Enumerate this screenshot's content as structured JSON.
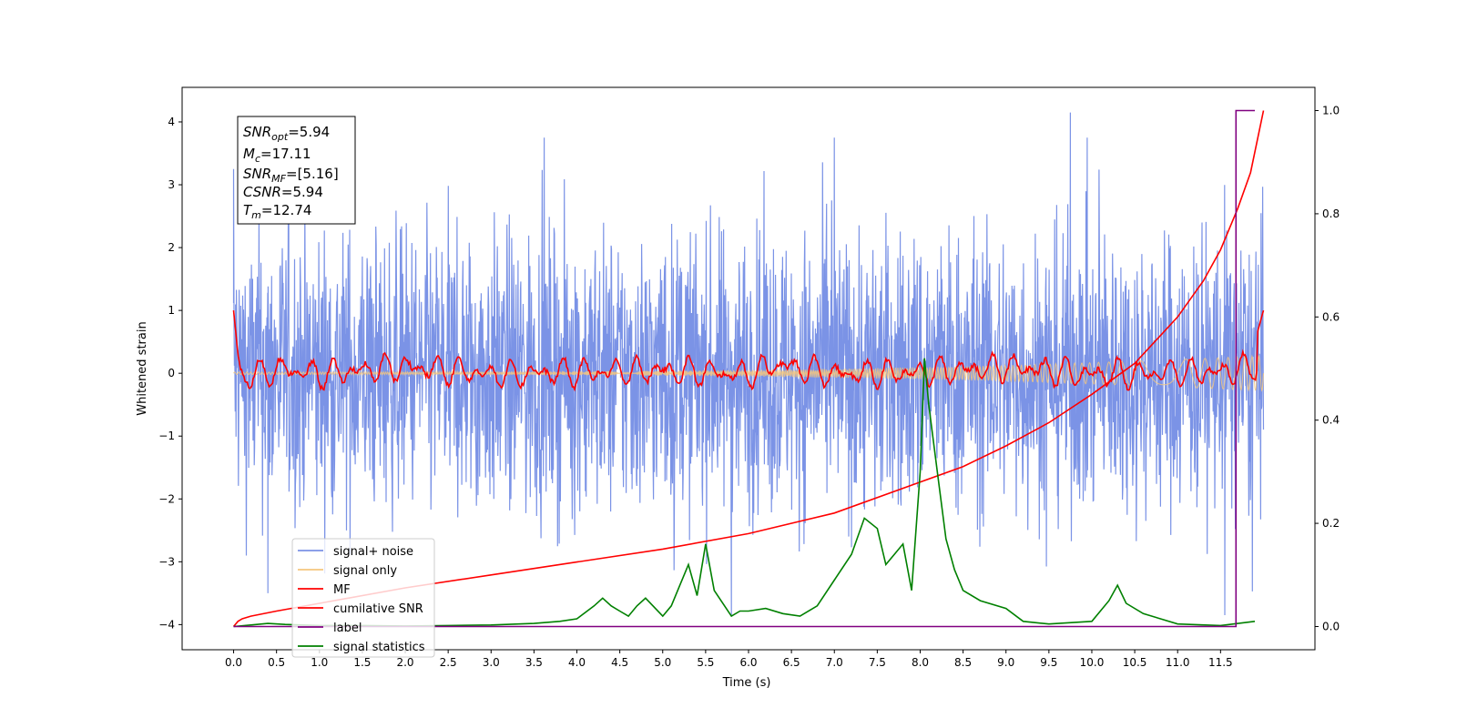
{
  "chart_data": {
    "type": "line",
    "xlabel": "Time (s)",
    "ylabel": "Whitened strain",
    "xlim": [
      -0.6,
      12.6
    ],
    "ylim": [
      -4.4,
      4.55
    ],
    "y2lim": [
      -0.045,
      1.045
    ],
    "x_ticks": [
      "0.0",
      "0.5",
      "1.0",
      "1.5",
      "2.0",
      "2.5",
      "3.0",
      "3.5",
      "4.0",
      "4.5",
      "5.0",
      "5.5",
      "6.0",
      "6.5",
      "7.0",
      "7.5",
      "8.0",
      "8.5",
      "9.0",
      "9.5",
      "10.0",
      "10.5",
      "11.0",
      "11.5"
    ],
    "y_ticks": [
      "−4",
      "−3",
      "−2",
      "−1",
      "0",
      "1",
      "2",
      "3",
      "4"
    ],
    "y2_ticks": [
      "0.0",
      "0.2",
      "0.4",
      "0.6",
      "0.8",
      "1.0"
    ],
    "grid": false,
    "legend_position": "lower-left",
    "annotation": {
      "lines": [
        {
          "sym": "SNR",
          "sub": "opt",
          "val": "=5.94"
        },
        {
          "sym": "M",
          "sub": "c",
          "val": "=17.11"
        },
        {
          "sym": "SNR",
          "sub": "MF",
          "val": "=[5.16]"
        },
        {
          "sym": "CSNR",
          "sub": "",
          "val": "=5.94"
        },
        {
          "sym": "T",
          "sub": "m",
          "val": "=12.74"
        }
      ]
    },
    "series": [
      {
        "name": "signal+ noise",
        "color": "#7b93e6",
        "axis": "left",
        "x_range": [
          0.0,
          12.0
        ],
        "envelope_upper": [
          2.2,
          4.15
        ],
        "envelope_lower": [
          -3.85,
          -2.0
        ],
        "notable_peaks": [
          {
            "x": 9.75,
            "y": 4.15
          },
          {
            "x": 7.0,
            "y": 3.75
          },
          {
            "x": 0.0,
            "y": 3.25
          }
        ],
        "notable_dips": [
          {
            "x": 5.8,
            "y": -3.85
          },
          {
            "x": 11.55,
            "y": -3.85
          },
          {
            "x": 0.4,
            "y": -3.5
          }
        ]
      },
      {
        "name": "signal only",
        "color": "#f5c77e",
        "axis": "left",
        "x_range": [
          0.0,
          12.0
        ],
        "amplitude_start": 0.02,
        "amplitude_end": 0.28
      },
      {
        "name": "MF",
        "color": "#ff0000",
        "axis": "left",
        "x_range": [
          0.0,
          12.0
        ],
        "x": [
          0.0,
          0.05,
          0.1,
          0.3,
          0.5,
          1.0,
          2.0,
          3.0,
          4.0,
          5.0,
          6.0,
          6.3,
          7.0,
          8.0,
          9.0,
          10.0,
          11.0,
          11.5,
          11.9,
          12.0
        ],
        "y": [
          1.0,
          0.3,
          -0.05,
          0.1,
          0.4,
          0.1,
          0.5,
          0.1,
          0.2,
          0.3,
          0.1,
          0.6,
          0.1,
          0.2,
          0.5,
          0.1,
          0.2,
          0.2,
          0.5,
          1.0
        ]
      },
      {
        "name": "cumilative SNR",
        "color": "#ff0000",
        "axis": "right",
        "x": [
          0.0,
          0.05,
          0.1,
          0.2,
          0.5,
          1.0,
          2.0,
          3.0,
          4.0,
          5.0,
          6.0,
          7.0,
          8.0,
          8.5,
          9.0,
          9.5,
          10.0,
          10.5,
          11.0,
          11.3,
          11.5,
          11.7,
          11.85,
          12.0
        ],
        "y": [
          0.0,
          0.01,
          0.015,
          0.02,
          0.03,
          0.045,
          0.075,
          0.1,
          0.125,
          0.15,
          0.18,
          0.22,
          0.28,
          0.31,
          0.35,
          0.395,
          0.45,
          0.51,
          0.6,
          0.67,
          0.73,
          0.81,
          0.88,
          1.0
        ]
      },
      {
        "name": "label",
        "color": "#800080",
        "axis": "right",
        "x": [
          0.0,
          11.68,
          11.68,
          11.9
        ],
        "y": [
          0.0,
          0.0,
          1.0,
          1.0
        ]
      },
      {
        "name": "signal statistics",
        "color": "#008000",
        "axis": "right",
        "x": [
          0.0,
          0.2,
          0.4,
          0.6,
          0.8,
          1.0,
          1.5,
          2.0,
          2.5,
          3.0,
          3.5,
          3.8,
          4.0,
          4.2,
          4.3,
          4.4,
          4.5,
          4.6,
          4.7,
          4.8,
          5.0,
          5.1,
          5.2,
          5.3,
          5.4,
          5.5,
          5.6,
          5.8,
          5.9,
          6.0,
          6.2,
          6.4,
          6.6,
          6.8,
          7.0,
          7.2,
          7.35,
          7.5,
          7.6,
          7.7,
          7.8,
          7.9,
          8.0,
          8.05,
          8.1,
          8.2,
          8.3,
          8.4,
          8.5,
          8.7,
          9.0,
          9.2,
          9.5,
          10.0,
          10.2,
          10.3,
          10.4,
          10.6,
          10.8,
          11.0,
          11.5,
          11.9
        ],
        "y": [
          0.0,
          0.003,
          0.006,
          0.004,
          0.003,
          0.002,
          0.002,
          0.001,
          0.002,
          0.003,
          0.006,
          0.01,
          0.015,
          0.04,
          0.055,
          0.04,
          0.03,
          0.02,
          0.04,
          0.055,
          0.02,
          0.04,
          0.08,
          0.12,
          0.06,
          0.16,
          0.07,
          0.02,
          0.03,
          0.03,
          0.035,
          0.025,
          0.02,
          0.04,
          0.09,
          0.14,
          0.21,
          0.19,
          0.12,
          0.14,
          0.16,
          0.07,
          0.3,
          0.52,
          0.43,
          0.3,
          0.17,
          0.11,
          0.07,
          0.05,
          0.035,
          0.01,
          0.005,
          0.01,
          0.05,
          0.08,
          0.045,
          0.025,
          0.015,
          0.005,
          0.002,
          0.01
        ]
      }
    ]
  }
}
